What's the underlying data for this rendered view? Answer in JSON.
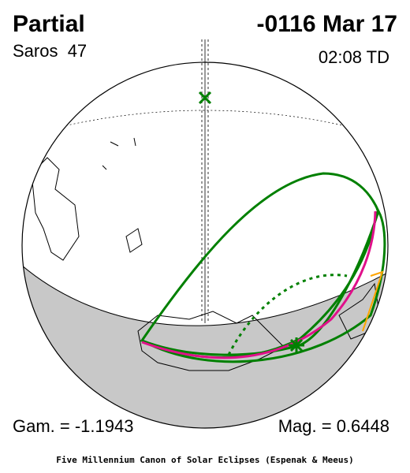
{
  "header": {
    "type": "Partial",
    "date": "-0116 Mar 17",
    "saros": "Saros  47",
    "time": "02:08 TD"
  },
  "footer": {
    "gamma": "Gam. = -1.1943",
    "magnitude": "Mag. = 0.6448",
    "credit": "Five Millennium Canon of Solar Eclipses (Espenak & Meeus)"
  }
}
